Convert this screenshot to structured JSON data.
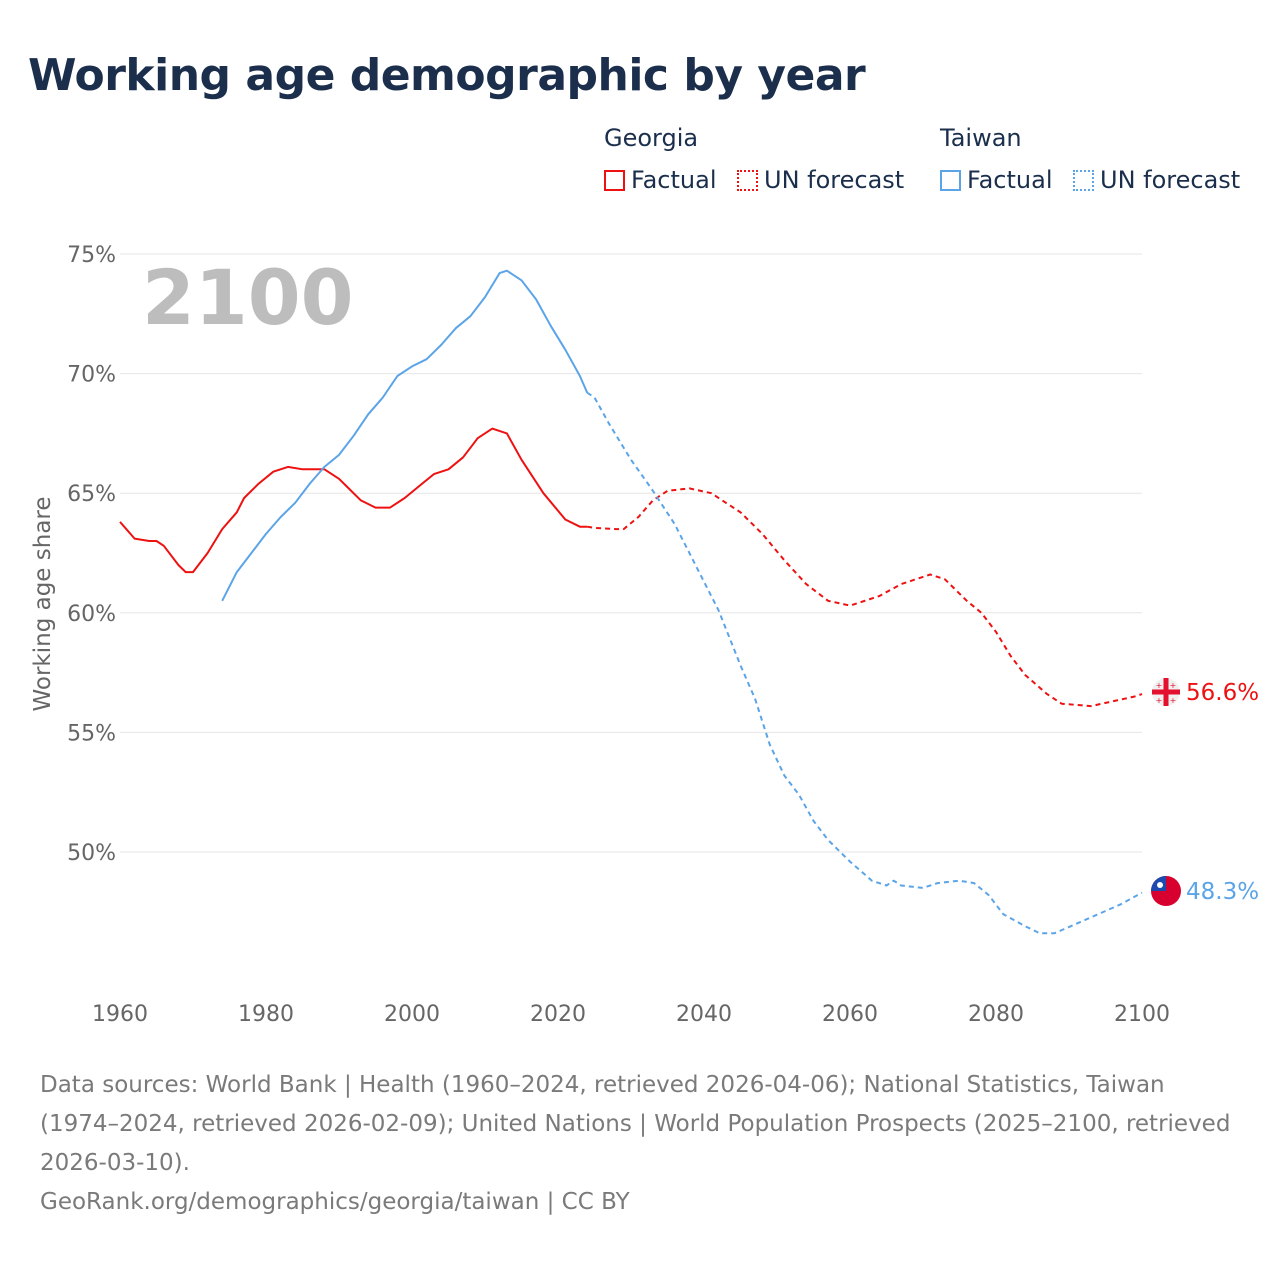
{
  "title": "Working age demographic by year",
  "legend": {
    "groups": [
      {
        "name": "Georgia",
        "color": "#ee1111",
        "items": [
          "Factual",
          "UN forecast"
        ]
      },
      {
        "name": "Taiwan",
        "color": "#5ba4e8",
        "items": [
          "Factual",
          "UN forecast"
        ]
      }
    ]
  },
  "year_label": "2100",
  "end_labels": {
    "georgia": "56.6%",
    "taiwan": "48.3%"
  },
  "footer": {
    "sources": "Data sources: World Bank | Health (1960–2024, retrieved 2026-04-06); National Statistics, Taiwan (1974–2024, retrieved 2026-02-09); United Nations | World Population Prospects (2025–2100, retrieved 2026-03-10).",
    "credit": "GeoRank.org/demographics/georgia/taiwan | CC BY"
  },
  "chart_data": {
    "type": "line",
    "title": "Working age demographic by year",
    "xlabel": "",
    "ylabel": "Working age share",
    "xlim": [
      1960,
      2100
    ],
    "ylim": [
      45,
      75
    ],
    "xticks": [
      "1960",
      "1980",
      "2000",
      "2020",
      "2040",
      "2060",
      "2080",
      "2100"
    ],
    "yticks": [
      {
        "v": 75,
        "label": "75%"
      },
      {
        "v": 70,
        "label": "70%"
      },
      {
        "v": 65,
        "label": "65%"
      },
      {
        "v": 60,
        "label": "60%"
      },
      {
        "v": 55,
        "label": "55%"
      },
      {
        "v": 50,
        "label": "50%"
      }
    ],
    "grid": true,
    "legend_position": "top-right",
    "series": [
      {
        "name": "Georgia Factual",
        "color": "#ee1111",
        "style": "solid",
        "x": [
          1960,
          1962,
          1964,
          1965,
          1966,
          1968,
          1969,
          1970,
          1972,
          1974,
          1976,
          1977,
          1979,
          1981,
          1983,
          1985,
          1988,
          1990,
          1991,
          1993,
          1995,
          1997,
          1999,
          2001,
          2003,
          2005,
          2007,
          2009,
          2011,
          2013,
          2015,
          2018,
          2021,
          2023,
          2024
        ],
        "y": [
          63.8,
          63.1,
          63.0,
          63.0,
          62.8,
          62.0,
          61.7,
          61.7,
          62.5,
          63.5,
          64.2,
          64.8,
          65.4,
          65.9,
          66.1,
          66.0,
          66.0,
          65.6,
          65.3,
          64.7,
          64.4,
          64.4,
          64.8,
          65.3,
          65.8,
          66.0,
          66.5,
          67.3,
          67.7,
          67.5,
          66.4,
          65.0,
          63.9,
          63.6,
          63.6
        ]
      },
      {
        "name": "Georgia UN forecast",
        "color": "#ee1111",
        "style": "dashed",
        "x": [
          2024,
          2025,
          2028,
          2029,
          2031,
          2033,
          2035,
          2038,
          2041,
          2043,
          2045,
          2048,
          2051,
          2054,
          2057,
          2060,
          2064,
          2067,
          2069,
          2071,
          2073,
          2076,
          2078,
          2080,
          2082,
          2084,
          2087,
          2089,
          2093,
          2096,
          2099,
          2100
        ],
        "y": [
          63.6,
          63.55,
          63.5,
          63.5,
          64.0,
          64.7,
          65.1,
          65.2,
          65.0,
          64.6,
          64.2,
          63.3,
          62.2,
          61.2,
          60.5,
          60.3,
          60.7,
          61.2,
          61.4,
          61.6,
          61.4,
          60.5,
          60.0,
          59.2,
          58.2,
          57.4,
          56.6,
          56.2,
          56.1,
          56.3,
          56.5,
          56.6
        ]
      },
      {
        "name": "Taiwan Factual",
        "color": "#5ba4e8",
        "style": "solid",
        "x": [
          1974,
          1976,
          1978,
          1980,
          1982,
          1984,
          1986,
          1988,
          1990,
          1992,
          1994,
          1996,
          1998,
          2000,
          2002,
          2004,
          2006,
          2008,
          2010,
          2012,
          2013,
          2015,
          2017,
          2019,
          2021,
          2023,
          2024
        ],
        "y": [
          60.5,
          61.7,
          62.5,
          63.3,
          64.0,
          64.6,
          65.4,
          66.1,
          66.6,
          67.4,
          68.3,
          69.0,
          69.9,
          70.3,
          70.6,
          71.2,
          71.9,
          72.4,
          73.2,
          74.2,
          74.3,
          73.9,
          73.1,
          72.0,
          71.0,
          69.9,
          69.2
        ]
      },
      {
        "name": "Taiwan UN forecast",
        "color": "#5ba4e8",
        "style": "dashed",
        "x": [
          2024,
          2025,
          2027,
          2030,
          2033,
          2036,
          2039,
          2042,
          2045,
          2047,
          2049,
          2051,
          2053,
          2055,
          2057,
          2060,
          2063,
          2065,
          2066,
          2067,
          2070,
          2072,
          2075,
          2077,
          2079,
          2081,
          2084,
          2086,
          2088,
          2091,
          2094,
          2097,
          2100
        ],
        "y": [
          69.2,
          69.0,
          67.9,
          66.4,
          65.1,
          63.7,
          61.9,
          60.1,
          57.8,
          56.4,
          54.5,
          53.2,
          52.4,
          51.3,
          50.5,
          49.6,
          48.8,
          48.6,
          48.8,
          48.6,
          48.5,
          48.7,
          48.8,
          48.7,
          48.2,
          47.4,
          46.9,
          46.6,
          46.6,
          47.0,
          47.4,
          47.8,
          48.3
        ]
      }
    ]
  }
}
